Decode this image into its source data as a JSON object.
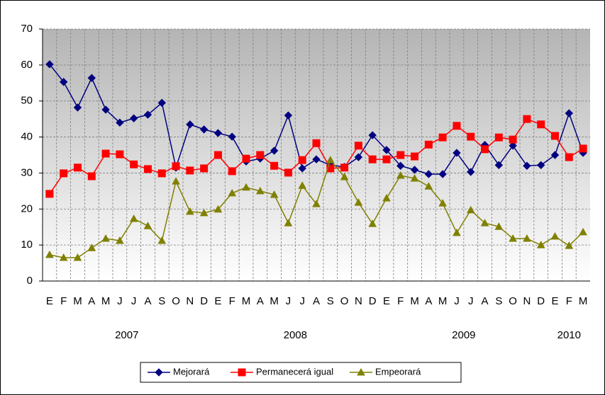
{
  "chart_data": {
    "type": "line",
    "categories": [
      "E",
      "F",
      "M",
      "A",
      "M",
      "J",
      "J",
      "A",
      "S",
      "O",
      "N",
      "D",
      "E",
      "F",
      "M",
      "A",
      "M",
      "J",
      "J",
      "A",
      "S",
      "O",
      "N",
      "D",
      "E",
      "F",
      "M",
      "A",
      "M",
      "J",
      "J",
      "A",
      "S",
      "O",
      "N",
      "D",
      "E",
      "F",
      "M"
    ],
    "x_groups": [
      {
        "label": "2007",
        "span": 12
      },
      {
        "label": "2008",
        "span": 12
      },
      {
        "label": "2009",
        "span": 12
      },
      {
        "label": "2010",
        "span": 3
      }
    ],
    "series": [
      {
        "name": "Mejorará",
        "color": "#000080",
        "marker": "diamond",
        "values": [
          60.2,
          55.3,
          48.2,
          56.4,
          47.6,
          44.0,
          45.2,
          46.2,
          49.5,
          31.5,
          43.5,
          42.1,
          41.1,
          40.1,
          33.2,
          34.0,
          36.2,
          46.0,
          31.3,
          33.8,
          32.2,
          31.7,
          34.4,
          40.5,
          36.4,
          32.0,
          30.9,
          29.7,
          29.7,
          35.6,
          30.3,
          37.8,
          32.2,
          37.6,
          32.0,
          32.2,
          35.0,
          46.6,
          35.6
        ]
      },
      {
        "name": "Permanecerá igual",
        "color": "#ff0000",
        "marker": "square",
        "values": [
          24.2,
          29.9,
          31.5,
          29.1,
          35.4,
          35.2,
          32.4,
          31.1,
          29.9,
          31.9,
          30.7,
          31.3,
          35.0,
          30.5,
          34.0,
          35.0,
          32.0,
          30.1,
          33.6,
          38.3,
          31.3,
          31.5,
          37.6,
          33.8,
          33.8,
          35.0,
          34.6,
          37.9,
          39.9,
          43.1,
          40.1,
          36.6,
          39.9,
          39.3,
          45.0,
          43.5,
          40.3,
          34.4,
          36.8
        ]
      },
      {
        "name": "Empeorará",
        "color": "#808000",
        "marker": "triangle",
        "values": [
          7.3,
          6.5,
          6.5,
          9.2,
          11.8,
          11.2,
          17.3,
          15.3,
          11.2,
          27.7,
          19.3,
          18.9,
          19.9,
          24.4,
          26.0,
          25.0,
          24.0,
          16.1,
          26.5,
          21.4,
          33.6,
          28.9,
          21.8,
          15.9,
          23.0,
          29.3,
          28.5,
          26.3,
          21.6,
          13.4,
          19.7,
          16.1,
          15.1,
          11.8,
          11.8,
          10.0,
          12.4,
          9.8,
          13.6
        ]
      }
    ],
    "ylim": [
      0,
      70
    ],
    "yticks": [
      0,
      10,
      20,
      30,
      40,
      50,
      60,
      70
    ],
    "grid": true,
    "legend": "bottom"
  }
}
